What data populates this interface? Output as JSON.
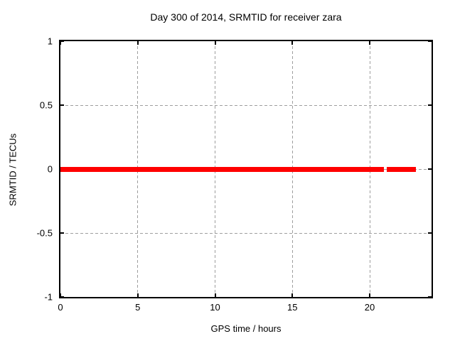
{
  "chart_data": {
    "type": "scatter",
    "title": "Day 300 of 2014, SRMTID for receiver zara",
    "xlabel": "GPS time / hours",
    "ylabel": "SRMTID / TECUs",
    "xlim": [
      0,
      24
    ],
    "ylim": [
      -1,
      1
    ],
    "xticks": [
      0,
      5,
      10,
      15,
      20
    ],
    "xtick_labels": [
      "0",
      "5",
      "10",
      "15",
      "20"
    ],
    "yticks": [
      1,
      0.5,
      0,
      -0.5,
      -1
    ],
    "ytick_labels": [
      "1",
      "0.5",
      "0",
      "-0.5",
      "-1"
    ],
    "grid": true,
    "grid_style": "dashed",
    "legend": "none",
    "ticks_mirrored_inward": true,
    "series": [
      {
        "name": "SRMTID",
        "style": "points",
        "marker": "filled-square",
        "marker_size_px": 7,
        "color": "#ff0000",
        "y_value": 0,
        "segments_x_hours": [
          [
            0,
            20.9
          ],
          [
            21.1,
            23.0
          ]
        ]
      }
    ],
    "colors": {
      "background": "#ffffff",
      "axis": "#000000",
      "grid": "#9e9e9e",
      "text": "#000000",
      "series": "#ff0000"
    }
  }
}
